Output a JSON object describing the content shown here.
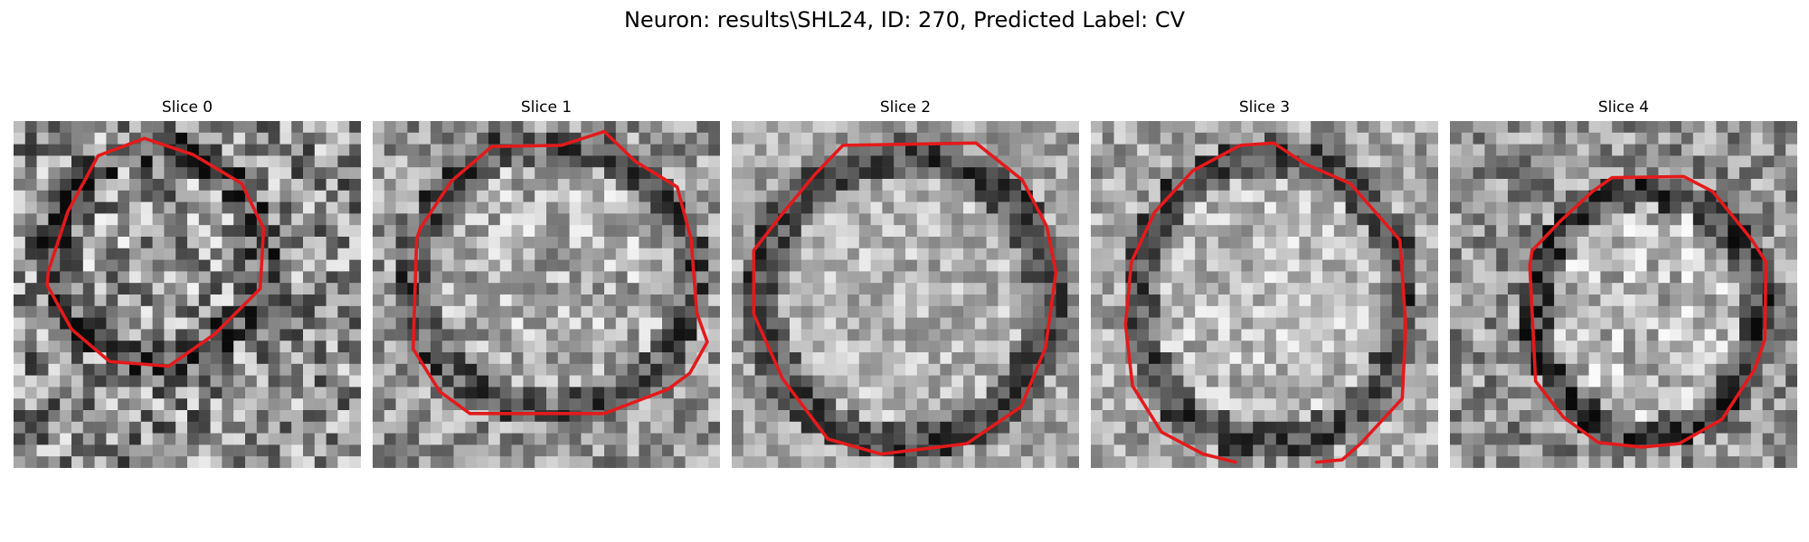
{
  "figure": {
    "title": "Neuron: results\\SHL24, ID: 270, Predicted Label: CV",
    "contour_color": "#e31a1c",
    "colormap": "grayscale",
    "slices": [
      {
        "label": "Slice 0"
      },
      {
        "label": "Slice 1"
      },
      {
        "label": "Slice 2"
      },
      {
        "label": "Slice 3"
      },
      {
        "label": "Slice 4"
      }
    ]
  }
}
